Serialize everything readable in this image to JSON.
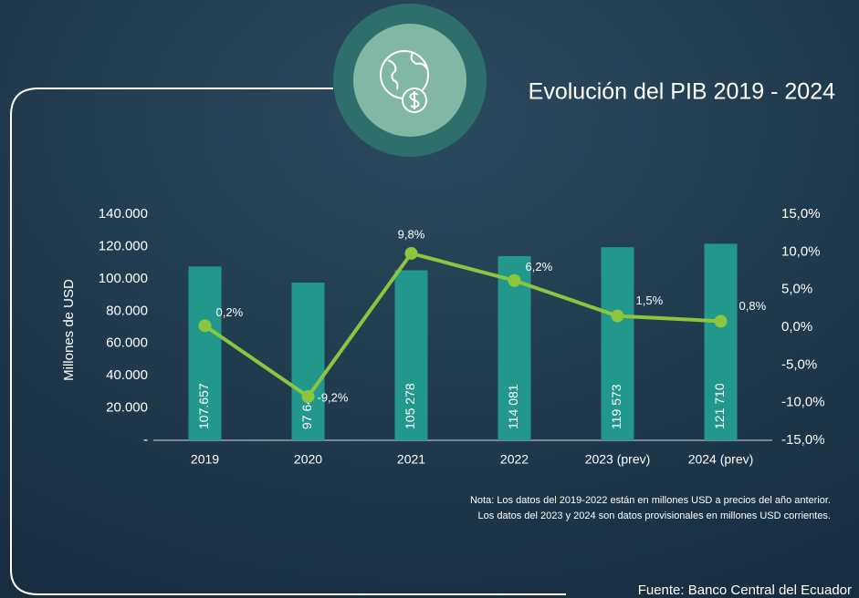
{
  "chart_data": {
    "type": "bar",
    "title": "Evolución del PIB 2019 - 2024",
    "ylabel": "Millones de USD",
    "categories": [
      "2019",
      "2020",
      "2021",
      "2022",
      "2023 (prev)",
      "2024 (prev)"
    ],
    "series": [
      {
        "color": "#21988b",
        "values": [
          107657,
          97649,
          105278,
          114081,
          119573,
          121710
        ],
        "value_labels": [
          "107.657",
          "97 649",
          "105 278",
          "114 081",
          "119 573",
          "121 710"
        ]
      },
      {
        "type": "line",
        "axis": "y2",
        "color": "#8cc63e",
        "values": [
          0.2,
          -9.2,
          9.8,
          6.2,
          1.5,
          0.8
        ],
        "value_labels": [
          "0,2%",
          "-9,2%",
          "9,8%",
          "6,2%",
          "1,5%",
          "0,8%"
        ]
      }
    ],
    "ylim": [
      0,
      140000
    ],
    "yticks": [
      {
        "value": 0,
        "label": "-"
      },
      {
        "value": 20000,
        "label": "20.000"
      },
      {
        "value": 40000,
        "label": "40.000"
      },
      {
        "value": 60000,
        "label": "60.000"
      },
      {
        "value": 80000,
        "label": "80.000"
      },
      {
        "value": 100000,
        "label": "100.000"
      },
      {
        "value": 120000,
        "label": "120.000"
      },
      {
        "value": 140000,
        "label": "140.000"
      }
    ],
    "y2lim": [
      -15,
      15
    ],
    "y2ticks": [
      {
        "value": -15,
        "label": "-15,0%"
      },
      {
        "value": -10,
        "label": "-10,0%"
      },
      {
        "value": -5,
        "label": "-5,0%"
      },
      {
        "value": 0,
        "label": "0,0%"
      },
      {
        "value": 5,
        "label": "5,0%"
      },
      {
        "value": 10,
        "label": "10,0%"
      },
      {
        "value": 15,
        "label": "15,0%"
      }
    ],
    "notes": [
      "Nota: Los datos del 2019-2022  están  en millones USD a precios del año anterior.",
      "Los datos del 2023 y 2024 son datos provisionales en millones USD corrientes."
    ],
    "source": "Fuente: Banco Central del Ecuador"
  }
}
